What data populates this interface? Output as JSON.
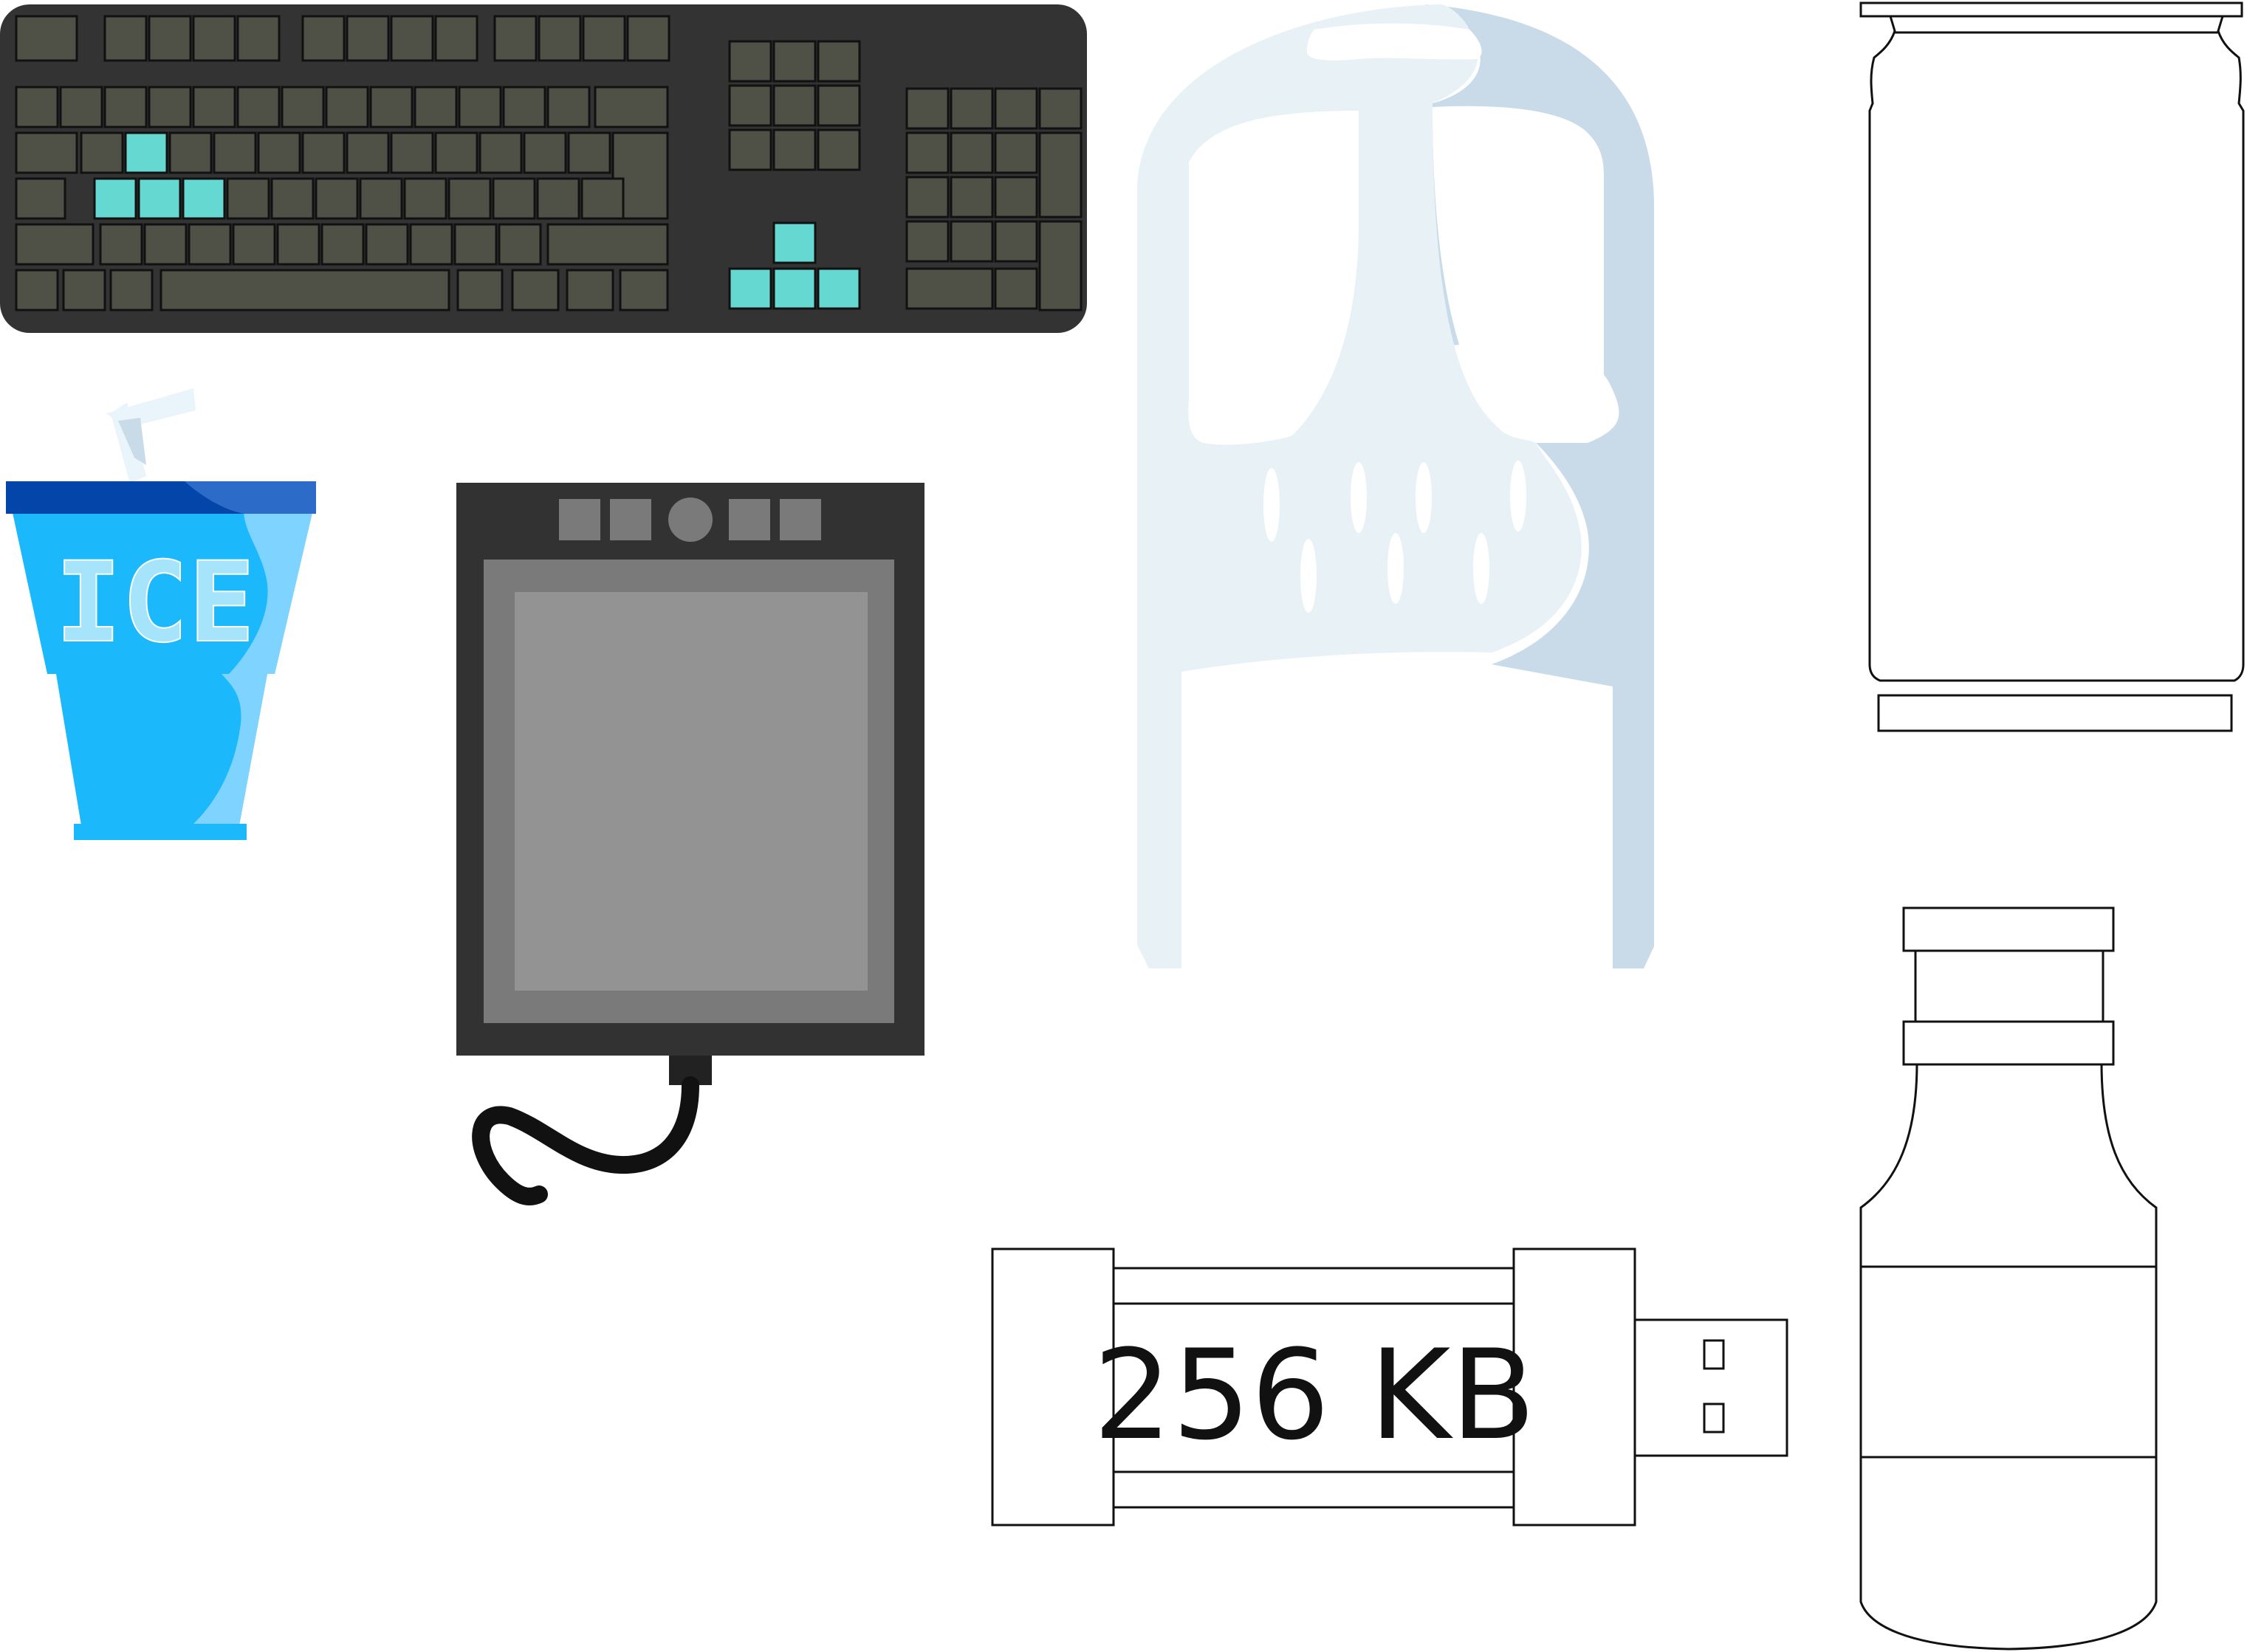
{
  "cup": {
    "label": "ICE"
  },
  "usb_drive": {
    "capacity": "256 KB"
  },
  "icons": {
    "keyboard": "keyboard-icon",
    "cup": "ice-cup-icon",
    "tablet": "drawing-tablet-icon",
    "skull": "skull-icon",
    "can": "can-icon",
    "bottle": "bottle-icon",
    "usb": "usb-drive-icon"
  },
  "colors": {
    "keyboard_body": "#333333",
    "key": "#4f5147",
    "key_highlight": "#66d8d2",
    "cup_lid": "#0345a8",
    "cup_body": "#1bb8fc",
    "cup_light": "#7ed4ff",
    "tablet_body": "#323232",
    "tablet_pad": "#7a7a7a",
    "tablet_surface": "#939393",
    "skull_light": "#e8f2f6",
    "skull_shadow": "#c9dbe9",
    "outline": "#111111"
  }
}
